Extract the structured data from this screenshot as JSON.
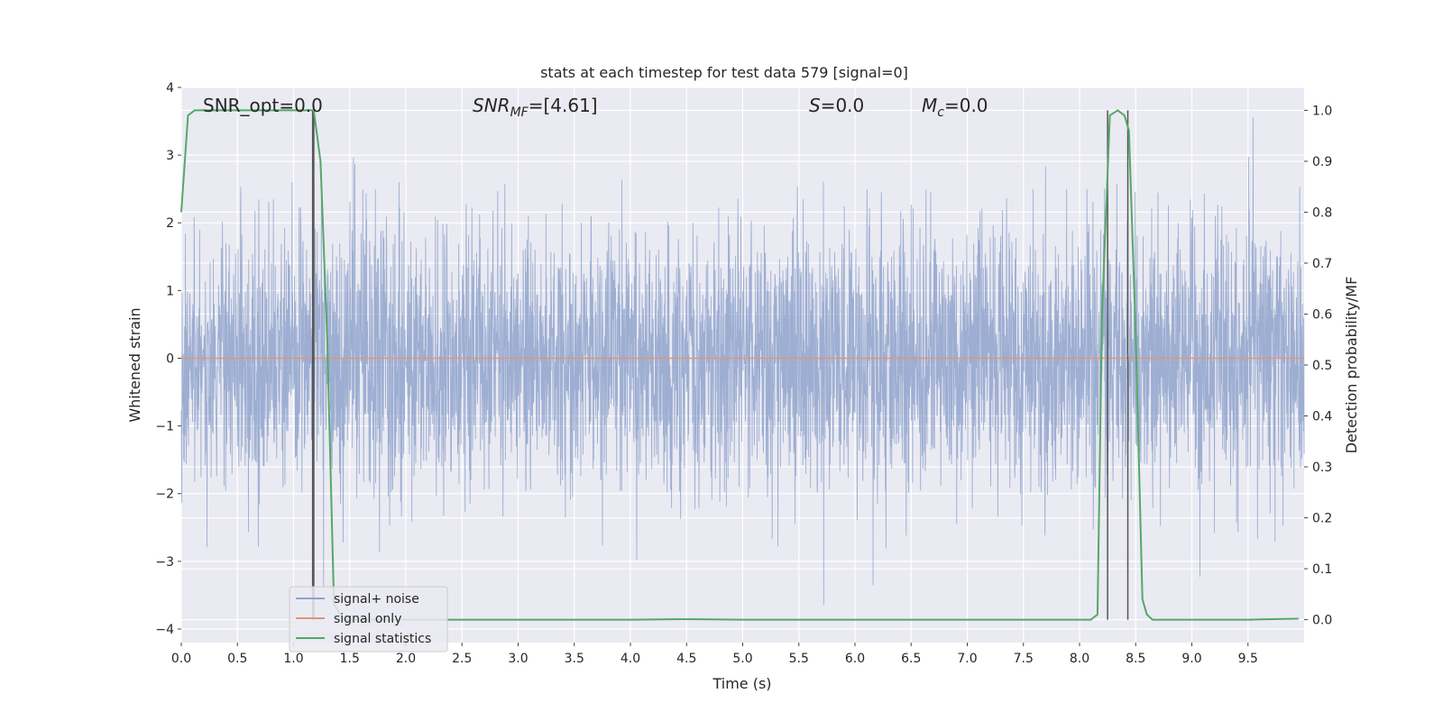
{
  "chart_data": {
    "type": "line",
    "title": "stats at each timestep for test data 579 [signal=0]",
    "xlabel": "Time (s)",
    "ylabel": "Whitened strain",
    "ylabel_right": "Detection probability/MF",
    "xlim": [
      0.0,
      10.0
    ],
    "ylim": [
      -4.2,
      4.0
    ],
    "ylim_right": [
      -0.045,
      1.045
    ],
    "x_ticks": [
      0.0,
      0.5,
      1.0,
      1.5,
      2.0,
      2.5,
      3.0,
      3.5,
      4.0,
      4.5,
      5.0,
      5.5,
      6.0,
      6.5,
      7.0,
      7.5,
      8.0,
      8.5,
      9.0,
      9.5
    ],
    "x_tick_labels": [
      "0.0",
      "0.5",
      "1.0",
      "1.5",
      "2.0",
      "2.5",
      "3.0",
      "3.5",
      "4.0",
      "4.5",
      "5.0",
      "5.5",
      "6.0",
      "6.5",
      "7.0",
      "7.5",
      "8.0",
      "8.5",
      "9.0",
      "9.5"
    ],
    "y_ticks": [
      4,
      3,
      2,
      1,
      0,
      -1,
      -2,
      -3,
      -4
    ],
    "y_tick_labels": [
      "4",
      "3",
      "2",
      "1",
      "0",
      "−1",
      "−2",
      "−3",
      "−4"
    ],
    "y_right_ticks": [
      1.0,
      0.9,
      0.8,
      0.7,
      0.6,
      0.5,
      0.4,
      0.3,
      0.2,
      0.1,
      0.0
    ],
    "y_right_tick_labels": [
      "1.0",
      "0.9",
      "0.8",
      "0.7",
      "0.6",
      "0.5",
      "0.4",
      "0.3",
      "0.2",
      "0.1",
      "0.0"
    ],
    "annotations": {
      "snr_opt": "SNR_opt=0.0",
      "snr_mf_label": "SNR",
      "snr_mf_sub": "MF",
      "snr_mf_value": "=[4.61]",
      "s_label": "S",
      "s_value": "=0.0",
      "mc_label": "M",
      "mc_sub": "c",
      "mc_value": "=0.0"
    },
    "legend": {
      "position": "lower-left",
      "entries": [
        "signal+ noise",
        "signal only",
        "signal statistics"
      ]
    },
    "grid": true,
    "series": [
      {
        "name": "signal+ noise",
        "color": "#8fa3cc",
        "style": "dense noise trace",
        "typical_amplitude": 1.35,
        "min": -4.1,
        "max": 3.65
      },
      {
        "name": "signal only",
        "color": "#e1957a",
        "x": [
          0.0,
          10.0
        ],
        "y": [
          0.0,
          0.0
        ]
      },
      {
        "name": "signal statistics",
        "color": "#55a868",
        "axis": "right",
        "x": [
          0.0,
          0.06,
          0.12,
          0.3,
          0.6,
          0.9,
          1.15,
          1.18,
          1.24,
          1.3,
          1.36,
          1.45,
          2.0,
          3.0,
          4.0,
          4.45,
          5.0,
          6.0,
          7.0,
          8.0,
          8.1,
          8.16,
          8.2,
          8.27,
          8.34,
          8.4,
          8.44,
          8.5,
          8.56,
          8.6,
          8.65,
          9.0,
          9.5,
          9.95
        ],
        "y": [
          0.8,
          0.99,
          1.0,
          1.0,
          1.0,
          1.0,
          1.0,
          1.0,
          0.9,
          0.55,
          0.03,
          0.0,
          0.0,
          0.0,
          0.0,
          0.001,
          0.0,
          0.0,
          0.0,
          0.0,
          0.0,
          0.01,
          0.6,
          0.99,
          1.0,
          0.99,
          0.96,
          0.56,
          0.04,
          0.01,
          0.0,
          0.0,
          0.0,
          0.002
        ]
      }
    ],
    "vertical_markers": [
      1.17,
      1.18,
      8.25,
      8.43
    ]
  }
}
